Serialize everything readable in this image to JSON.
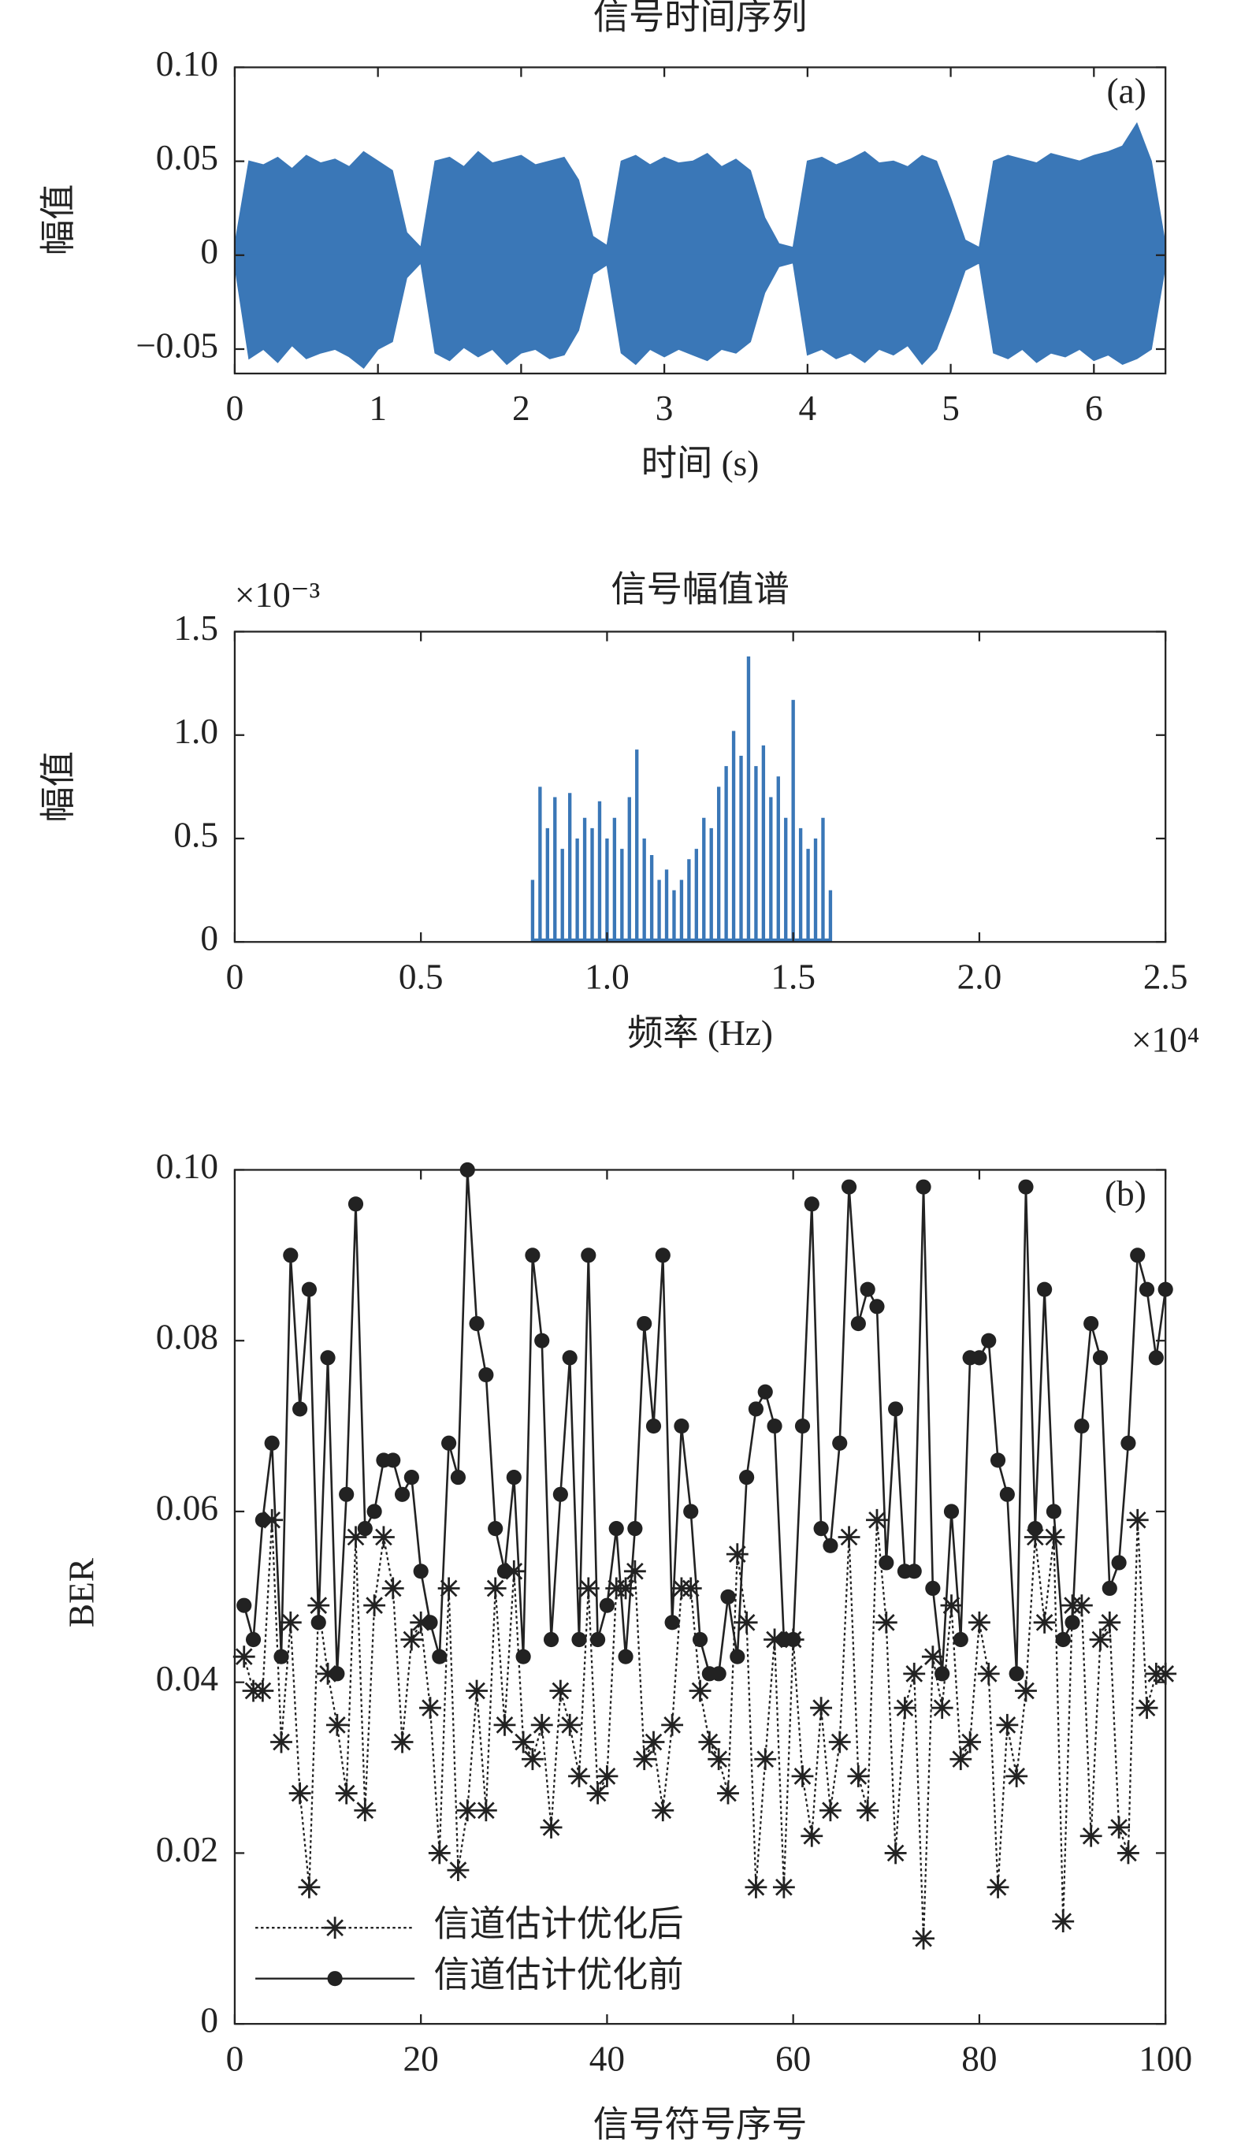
{
  "chart_data": [
    {
      "type": "area",
      "title": "信号时间序列",
      "xlabel": "时间 (s)",
      "ylabel": "幅值",
      "annotation": "(a)",
      "color": "#3a77b7",
      "x": [
        0,
        0.1,
        0.2,
        0.3,
        0.4,
        0.5,
        0.6,
        0.7,
        0.8,
        0.9,
        1,
        1.1,
        1.2,
        1.3,
        1.4,
        1.5,
        1.6,
        1.7,
        1.8,
        1.9,
        2,
        2.1,
        2.2,
        2.3,
        2.4,
        2.5,
        2.6,
        2.7,
        2.8,
        2.9,
        3,
        3.1,
        3.2,
        3.3,
        3.4,
        3.5,
        3.6,
        3.7,
        3.8,
        3.9,
        4,
        4.1,
        4.2,
        4.3,
        4.4,
        4.5,
        4.6,
        4.7,
        4.8,
        4.9,
        5,
        5.1,
        5.2,
        5.3,
        5.4,
        5.5,
        5.6,
        5.7,
        5.8,
        5.9,
        6,
        6.1,
        6.2,
        6.3,
        6.4,
        6.5
      ],
      "series": [
        {
          "values": [
            0.005,
            0.05,
            0.048,
            0.052,
            0.046,
            0.053,
            0.049,
            0.051,
            0.047,
            0.055,
            0.05,
            0.045,
            0.012,
            0.004,
            0.05,
            0.052,
            0.047,
            0.055,
            0.049,
            0.051,
            0.053,
            0.048,
            0.05,
            0.052,
            0.04,
            0.01,
            0.005,
            0.05,
            0.053,
            0.048,
            0.052,
            0.049,
            0.05,
            0.054,
            0.047,
            0.051,
            0.045,
            0.02,
            0.006,
            0.004,
            0.05,
            0.052,
            0.048,
            0.051,
            0.055,
            0.049,
            0.05,
            0.047,
            0.053,
            0.05,
            0.03,
            0.008,
            0.004,
            0.05,
            0.053,
            0.051,
            0.049,
            0.054,
            0.052,
            0.05,
            0.053,
            0.055,
            0.058,
            0.07,
            0.05,
            0.005
          ]
        },
        {
          "values": [
            -0.005,
            -0.055,
            -0.05,
            -0.057,
            -0.048,
            -0.055,
            -0.052,
            -0.05,
            -0.054,
            -0.06,
            -0.05,
            -0.046,
            -0.012,
            -0.004,
            -0.052,
            -0.056,
            -0.049,
            -0.054,
            -0.05,
            -0.058,
            -0.052,
            -0.05,
            -0.055,
            -0.053,
            -0.04,
            -0.01,
            -0.005,
            -0.052,
            -0.058,
            -0.05,
            -0.054,
            -0.05,
            -0.053,
            -0.056,
            -0.05,
            -0.052,
            -0.046,
            -0.02,
            -0.006,
            -0.004,
            -0.053,
            -0.05,
            -0.055,
            -0.052,
            -0.057,
            -0.05,
            -0.053,
            -0.048,
            -0.058,
            -0.05,
            -0.03,
            -0.008,
            -0.004,
            -0.052,
            -0.055,
            -0.05,
            -0.057,
            -0.052,
            -0.054,
            -0.05,
            -0.056,
            -0.053,
            -0.058,
            -0.055,
            -0.05,
            -0.005
          ]
        }
      ],
      "xlim": [
        0,
        6.5
      ],
      "xticks": [
        0,
        1,
        2,
        3,
        4,
        5,
        6
      ],
      "ylim": [
        -0.063,
        0.1
      ],
      "yticks": [
        {
          "value": -0.05,
          "label": "−0.05"
        },
        0,
        0.05,
        {
          "value": 0.1,
          "label": "0.10"
        }
      ]
    },
    {
      "type": "stem",
      "title": "信号幅值谱",
      "xlabel": "频率 (Hz)",
      "ylabel": "幅值",
      "x_multiplier": "×10⁴",
      "y_multiplier": "×10⁻³",
      "color": "#3a77b7",
      "x": [
        0.8,
        0.82,
        0.84,
        0.86,
        0.88,
        0.9,
        0.92,
        0.94,
        0.96,
        0.98,
        1,
        1.02,
        1.04,
        1.06,
        1.08,
        1.1,
        1.12,
        1.14,
        1.16,
        1.18,
        1.2,
        1.22,
        1.24,
        1.26,
        1.28,
        1.3,
        1.32,
        1.34,
        1.36,
        1.38,
        1.4,
        1.42,
        1.44,
        1.46,
        1.48,
        1.5,
        1.52,
        1.54,
        1.56,
        1.58,
        1.6
      ],
      "values": [
        0.3,
        0.75,
        0.55,
        0.7,
        0.45,
        0.72,
        0.5,
        0.6,
        0.55,
        0.68,
        0.5,
        0.6,
        0.45,
        0.7,
        0.93,
        0.5,
        0.42,
        0.3,
        0.35,
        0.25,
        0.3,
        0.4,
        0.45,
        0.6,
        0.55,
        0.75,
        0.85,
        1.02,
        0.9,
        1.38,
        0.85,
        0.95,
        0.7,
        0.8,
        0.6,
        1.17,
        0.55,
        0.45,
        0.5,
        0.6,
        0.25
      ],
      "xlim": [
        0,
        2.5
      ],
      "xticks": [
        0,
        0.5,
        {
          "value": 1,
          "label": "1.0"
        },
        1.5,
        {
          "value": 2,
          "label": "2.0"
        },
        2.5
      ],
      "ylim": [
        0,
        1.5
      ],
      "yticks": [
        0,
        0.5,
        {
          "value": 1,
          "label": "1.0"
        },
        1.5
      ]
    },
    {
      "type": "line",
      "xlabel": "信号符号序号",
      "ylabel": "BER",
      "annotation": "(b)",
      "legend": "lower left",
      "x": [
        1,
        2,
        3,
        4,
        5,
        6,
        7,
        8,
        9,
        10,
        11,
        12,
        13,
        14,
        15,
        16,
        17,
        18,
        19,
        20,
        21,
        22,
        23,
        24,
        25,
        26,
        27,
        28,
        29,
        30,
        31,
        32,
        33,
        34,
        35,
        36,
        37,
        38,
        39,
        40,
        41,
        42,
        43,
        44,
        45,
        46,
        47,
        48,
        49,
        50,
        51,
        52,
        53,
        54,
        55,
        56,
        57,
        58,
        59,
        60,
        61,
        62,
        63,
        64,
        65,
        66,
        67,
        68,
        69,
        70,
        71,
        72,
        73,
        74,
        75,
        76,
        77,
        78,
        79,
        80,
        81,
        82,
        83,
        84,
        85,
        86,
        87,
        88,
        89,
        90,
        91,
        92,
        93,
        94,
        95,
        96,
        97,
        98,
        99,
        100
      ],
      "series": [
        {
          "name": "信道估计优化后",
          "color": "#222222",
          "marker": "star",
          "dash": "dotted",
          "values": [
            0.043,
            0.039,
            0.039,
            0.059,
            0.033,
            0.047,
            0.027,
            0.016,
            0.049,
            0.041,
            0.035,
            0.027,
            0.057,
            0.025,
            0.049,
            0.057,
            0.051,
            0.033,
            0.045,
            0.047,
            0.037,
            0.02,
            0.051,
            0.018,
            0.025,
            0.039,
            0.025,
            0.051,
            0.035,
            0.053,
            0.033,
            0.031,
            0.035,
            0.023,
            0.039,
            0.035,
            0.029,
            0.051,
            0.027,
            0.029,
            0.051,
            0.051,
            0.053,
            0.031,
            0.033,
            0.025,
            0.035,
            0.051,
            0.051,
            0.039,
            0.033,
            0.031,
            0.027,
            0.055,
            0.047,
            0.016,
            0.031,
            0.045,
            0.016,
            0.045,
            0.029,
            0.022,
            0.037,
            0.025,
            0.033,
            0.057,
            0.029,
            0.025,
            0.059,
            0.047,
            0.02,
            0.037,
            0.041,
            0.01,
            0.043,
            0.037,
            0.049,
            0.031,
            0.033,
            0.047,
            0.041,
            0.016,
            0.035,
            0.029,
            0.039,
            0.057,
            0.047,
            0.057,
            0.012,
            0.049,
            0.049,
            0.022,
            0.045,
            0.047,
            0.023,
            0.02,
            0.059,
            0.037,
            0.041,
            0.041
          ]
        },
        {
          "name": "信道估计优化前",
          "color": "#222222",
          "marker": "dot",
          "dash": "solid",
          "values": [
            0.049,
            0.045,
            0.059,
            0.068,
            0.043,
            0.09,
            0.072,
            0.086,
            0.047,
            0.078,
            0.041,
            0.062,
            0.096,
            0.058,
            0.06,
            0.066,
            0.066,
            0.062,
            0.064,
            0.053,
            0.047,
            0.043,
            0.068,
            0.064,
            0.1,
            0.082,
            0.076,
            0.058,
            0.053,
            0.064,
            0.043,
            0.09,
            0.08,
            0.045,
            0.062,
            0.078,
            0.045,
            0.09,
            0.045,
            0.049,
            0.058,
            0.043,
            0.058,
            0.082,
            0.07,
            0.09,
            0.047,
            0.07,
            0.06,
            0.045,
            0.041,
            0.041,
            0.05,
            0.043,
            0.064,
            0.072,
            0.074,
            0.07,
            0.045,
            0.045,
            0.07,
            0.096,
            0.058,
            0.056,
            0.068,
            0.098,
            0.082,
            0.086,
            0.084,
            0.054,
            0.072,
            0.053,
            0.053,
            0.098,
            0.051,
            0.041,
            0.06,
            0.045,
            0.078,
            0.078,
            0.08,
            0.066,
            0.062,
            0.041,
            0.098,
            0.058,
            0.086,
            0.06,
            0.045,
            0.047,
            0.07,
            0.082,
            0.078,
            0.051,
            0.054,
            0.068,
            0.09,
            0.086,
            0.078,
            0.086
          ]
        }
      ],
      "xlim": [
        0,
        100
      ],
      "xticks": [
        0,
        20,
        40,
        60,
        80,
        100
      ],
      "ylim": [
        0,
        0.1
      ],
      "yticks": [
        0,
        0.02,
        0.04,
        0.06,
        0.08,
        {
          "value": 0.1,
          "label": "0.10"
        }
      ]
    }
  ]
}
